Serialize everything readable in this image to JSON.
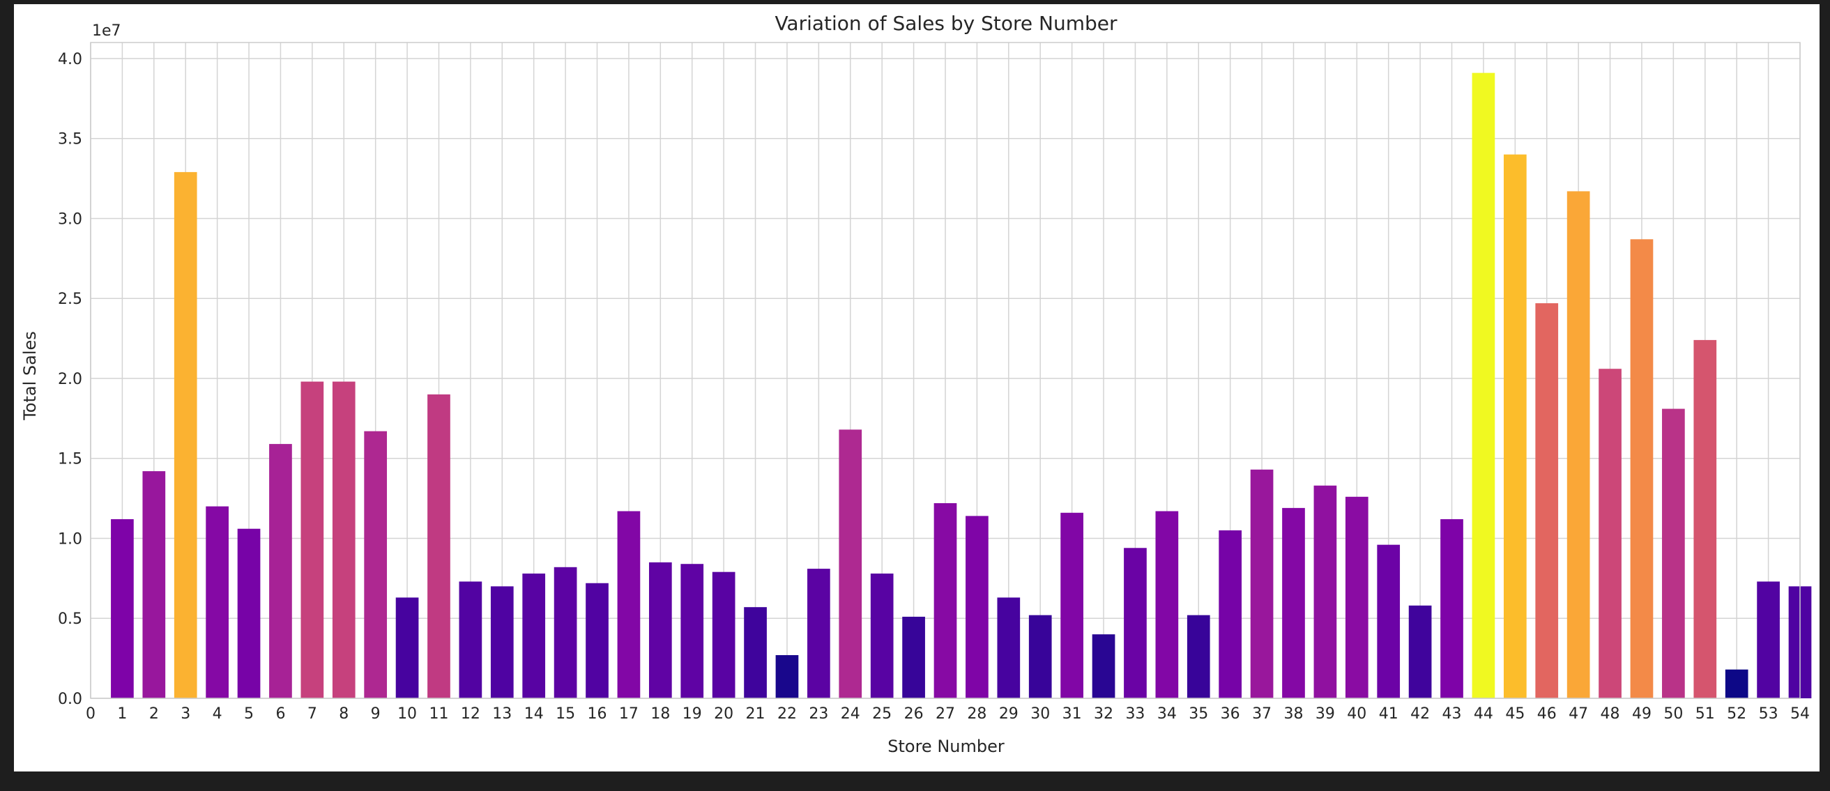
{
  "chart_data": {
    "type": "bar",
    "title": "Variation of Sales by Store Number",
    "xlabel": "Store Number",
    "ylabel": "Total Sales",
    "y_offset_label": "1e7",
    "y_scale": 10000000,
    "ylim": [
      0,
      4.1
    ],
    "yticks": [
      0.0,
      0.5,
      1.0,
      1.5,
      2.0,
      2.5,
      3.0,
      3.5,
      4.0
    ],
    "ytick_labels": [
      "0.0",
      "0.5",
      "1.0",
      "1.5",
      "2.0",
      "2.5",
      "3.0",
      "3.5",
      "4.0"
    ],
    "xlim": [
      0,
      54
    ],
    "xticks": [
      0,
      1,
      2,
      3,
      4,
      5,
      6,
      7,
      8,
      9,
      10,
      11,
      12,
      13,
      14,
      15,
      16,
      17,
      18,
      19,
      20,
      21,
      22,
      23,
      24,
      25,
      26,
      27,
      28,
      29,
      30,
      31,
      32,
      33,
      34,
      35,
      36,
      37,
      38,
      39,
      40,
      41,
      42,
      43,
      44,
      45,
      46,
      47,
      48,
      49,
      50,
      51,
      52,
      53,
      54
    ],
    "grid": true,
    "colormap": "plasma",
    "categories": [
      1,
      2,
      3,
      4,
      5,
      6,
      7,
      8,
      9,
      10,
      11,
      12,
      13,
      14,
      15,
      16,
      17,
      18,
      19,
      20,
      21,
      22,
      23,
      24,
      25,
      26,
      27,
      28,
      29,
      30,
      31,
      32,
      33,
      34,
      35,
      36,
      37,
      38,
      39,
      40,
      41,
      42,
      43,
      44,
      45,
      46,
      47,
      48,
      49,
      50,
      51,
      52,
      53,
      54
    ],
    "values": [
      11.2,
      14.2,
      32.9,
      12.0,
      10.6,
      15.9,
      19.8,
      19.8,
      16.7,
      6.3,
      19.0,
      7.3,
      7.0,
      7.8,
      8.2,
      7.2,
      11.7,
      8.5,
      8.4,
      7.9,
      5.7,
      2.7,
      8.1,
      16.8,
      7.8,
      5.1,
      12.2,
      11.4,
      6.3,
      5.2,
      11.6,
      4.0,
      9.4,
      11.7,
      5.2,
      10.5,
      14.3,
      11.9,
      13.3,
      12.6,
      9.6,
      5.8,
      11.2,
      39.1,
      34.0,
      24.7,
      31.7,
      20.6,
      28.7,
      18.1,
      22.4,
      1.8,
      7.3,
      7.0
    ],
    "value_unit": "million"
  }
}
